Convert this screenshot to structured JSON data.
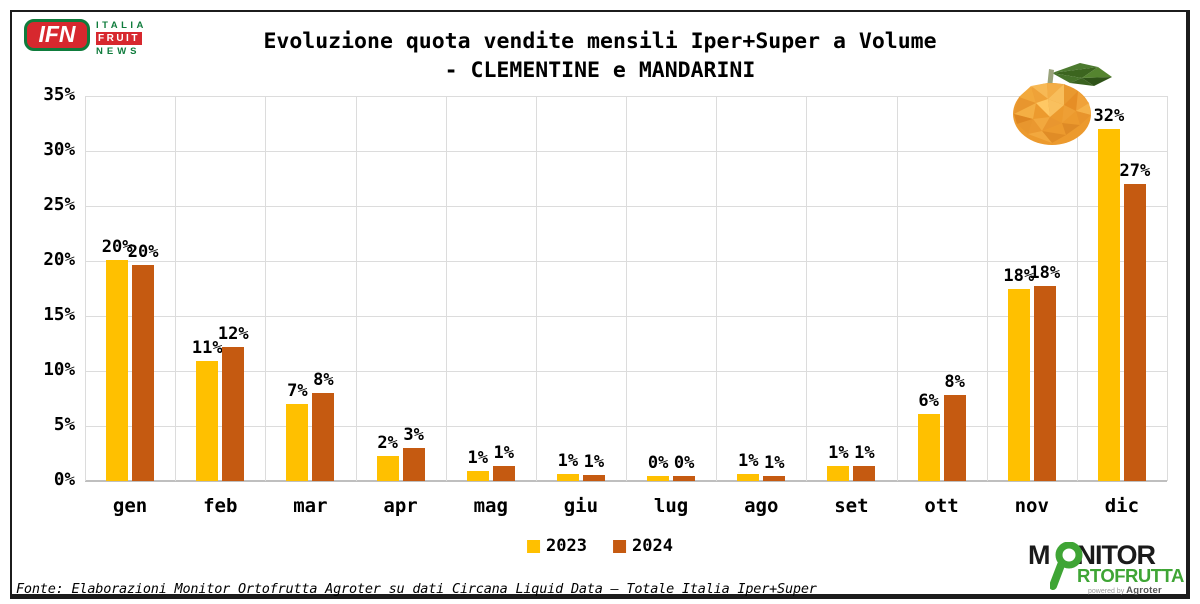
{
  "header": {
    "logo": {
      "short": "IFN",
      "line1": "ITALIA",
      "line2": "FRUIT",
      "line3": "NEWS"
    },
    "title_line1": "Evoluzione quota vendite mensili Iper+Super a Volume",
    "title_line2": "- CLEMENTINE e MANDARINI"
  },
  "chart_data": {
    "type": "bar",
    "title": "Evoluzione quota vendite mensili Iper+Super a Volume - CLEMENTINE e MANDARINI",
    "categories": [
      "gen",
      "feb",
      "mar",
      "apr",
      "mag",
      "giu",
      "lug",
      "ago",
      "set",
      "ott",
      "nov",
      "dic"
    ],
    "series": [
      {
        "name": "2023",
        "color": "#FFC000",
        "values": [
          20.1,
          10.9,
          7.0,
          2.3,
          0.9,
          0.6,
          0.5,
          0.6,
          1.35,
          6.1,
          17.5,
          32.0
        ],
        "labels": [
          "20%",
          "11%",
          "7%",
          "2%",
          "1%",
          "1%",
          "0%",
          "1%",
          "1%",
          "6%",
          "18%",
          "32%"
        ]
      },
      {
        "name": "2024",
        "color": "#C55A11",
        "values": [
          19.6,
          12.2,
          8.0,
          3.0,
          1.4,
          0.55,
          0.5,
          0.5,
          1.35,
          7.8,
          17.7,
          27.0
        ],
        "labels": [
          "20%",
          "12%",
          "8%",
          "3%",
          "1%",
          "1%",
          "0%",
          "1%",
          "1%",
          "8%",
          "18%",
          "27%"
        ]
      }
    ],
    "xlabel": "",
    "ylabel": "",
    "ylim": [
      0,
      35
    ],
    "ytick_step": 5,
    "ytick_labels": [
      "0%",
      "5%",
      "10%",
      "15%",
      "20%",
      "25%",
      "30%",
      "35%"
    ],
    "grid": true,
    "legend_position": "bottom"
  },
  "footer": {
    "source": "Fonte: Elaborazioni Monitor Ortofrutta Agroter su dati Circana Liquid Data – Totale Italia Iper+Super"
  },
  "monitor_logo": {
    "part1": "M",
    "part2": "NITOR",
    "line2": "RTOFRUTTA",
    "powered_by": "powered by ",
    "brand": "Agroter"
  },
  "colors": {
    "series_2023": "#FFC000",
    "series_2024": "#C55A11",
    "grid": "#DCDCDC",
    "axis": "#BFBFBF",
    "ifn_red": "#D7282E",
    "ifn_green": "#0F7C3C",
    "monitor_green": "#3FA535"
  }
}
